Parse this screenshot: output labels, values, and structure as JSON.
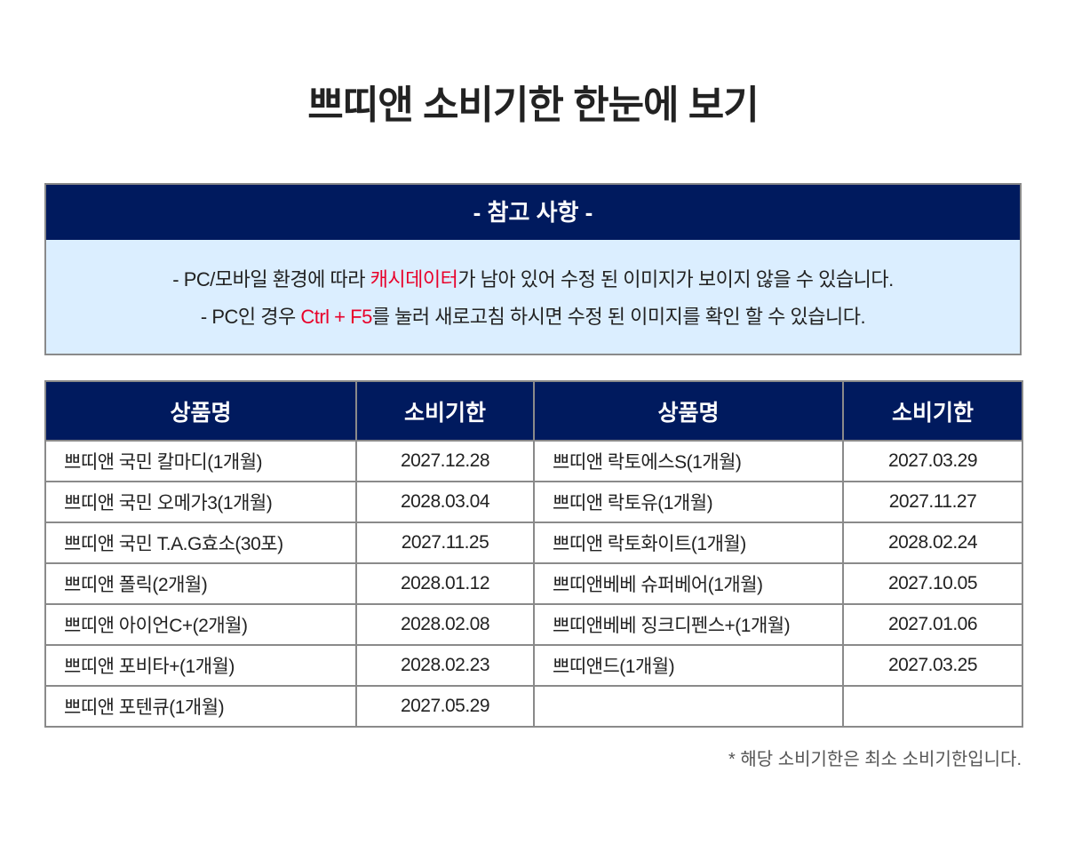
{
  "title": "쁘띠앤 소비기한 한눈에 보기",
  "notice": {
    "heading": "- 참고 사항 -",
    "line1_pre": "- PC/모바일 환경에 따라 ",
    "line1_highlight": "캐시데이터",
    "line1_post": "가 남아 있어 수정 된 이미지가 보이지 않을 수 있습니다.",
    "line2_pre": "- PC인 경우 ",
    "line2_highlight": "Ctrl + F5",
    "line2_post": "를 눌러 새로고침 하시면 수정 된 이미지를 확인 할 수 있습니다.",
    "highlight_color": "#e8002a"
  },
  "table": {
    "headers": [
      "상품명",
      "소비기한",
      "상품명",
      "소비기한"
    ],
    "rows": [
      [
        "쁘띠앤 국민 칼마디(1개월)",
        "2027.12.28",
        "쁘띠앤 락토에스S(1개월)",
        "2027.03.29"
      ],
      [
        "쁘띠앤 국민 오메가3(1개월)",
        "2028.03.04",
        "쁘띠앤 락토유(1개월)",
        "2027.11.27"
      ],
      [
        "쁘띠앤 국민 T.A.G효소(30포)",
        "2027.11.25",
        "쁘띠앤 락토화이트(1개월)",
        "2028.02.24"
      ],
      [
        "쁘띠앤 폴릭(2개월)",
        "2028.01.12",
        "쁘띠앤베베 슈퍼베어(1개월)",
        "2027.10.05"
      ],
      [
        "쁘띠앤 아이언C+(2개월)",
        "2028.02.08",
        "쁘띠앤베베 징크디펜스+(1개월)",
        "2027.01.06"
      ],
      [
        "쁘띠앤 포비타+(1개월)",
        "2028.02.23",
        "쁘띠앤드(1개월)",
        "2027.03.25"
      ],
      [
        "쁘띠앤 포텐큐(1개월)",
        "2027.05.29",
        "",
        ""
      ]
    ]
  },
  "footnote": "* 해당 소비기한은 최소 소비기한입니다.",
  "colors": {
    "header_bg": "#001a5e",
    "notice_bg": "#dbeeff"
  }
}
